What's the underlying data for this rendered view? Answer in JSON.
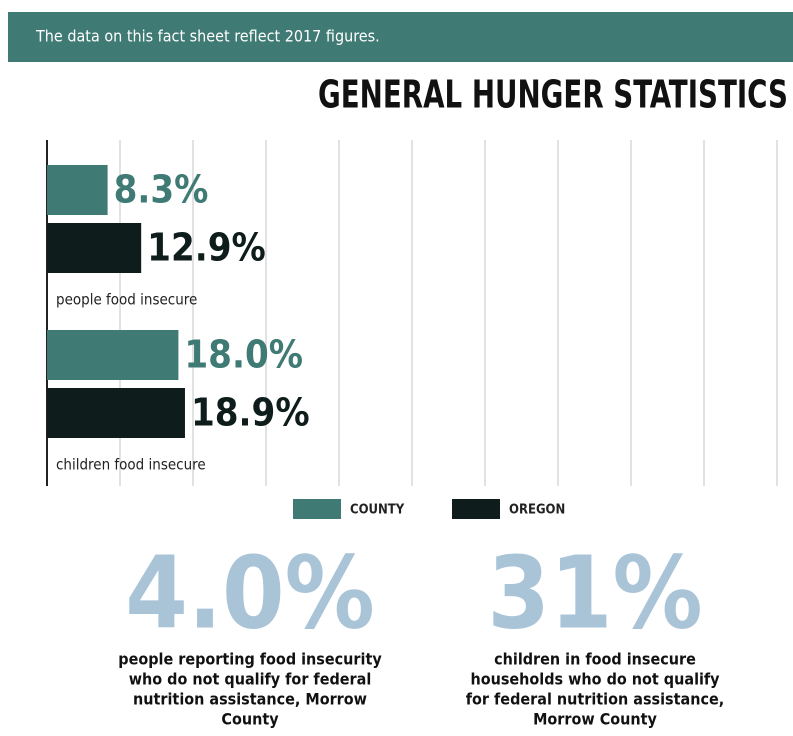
{
  "note": "The data on this fact sheet reflect 2017 figures.",
  "chart_data": {
    "type": "bar",
    "orientation": "horizontal",
    "title": "GENERAL HUNGER STATISTICS",
    "categories": [
      "people food insecure",
      "children food insecure"
    ],
    "series": [
      {
        "name": "COUNTY",
        "color": "#3f7a74",
        "values": [
          8.3,
          18.0
        ],
        "value_labels": [
          "8.3%",
          "18.0%"
        ]
      },
      {
        "name": "OREGON",
        "color": "#0e1c1b",
        "values": [
          12.9,
          18.9
        ],
        "value_labels": [
          "12.9%",
          "18.9%"
        ]
      }
    ],
    "xlim": [
      0,
      100
    ],
    "xticks": [
      0,
      10,
      20,
      30,
      40,
      50,
      60,
      70,
      80,
      90,
      100
    ],
    "grid": true,
    "legend": "bottom"
  },
  "stats": [
    {
      "figure": "4.0%",
      "caption": [
        "people reporting food insecurity",
        "who do not qualify for federal",
        "nutrition assistance, Morrow",
        "County"
      ]
    },
    {
      "figure": "31%",
      "caption": [
        "children in food insecure",
        "households who do not qualify",
        "for federal nutrition assistance,",
        "Morrow County"
      ]
    }
  ]
}
